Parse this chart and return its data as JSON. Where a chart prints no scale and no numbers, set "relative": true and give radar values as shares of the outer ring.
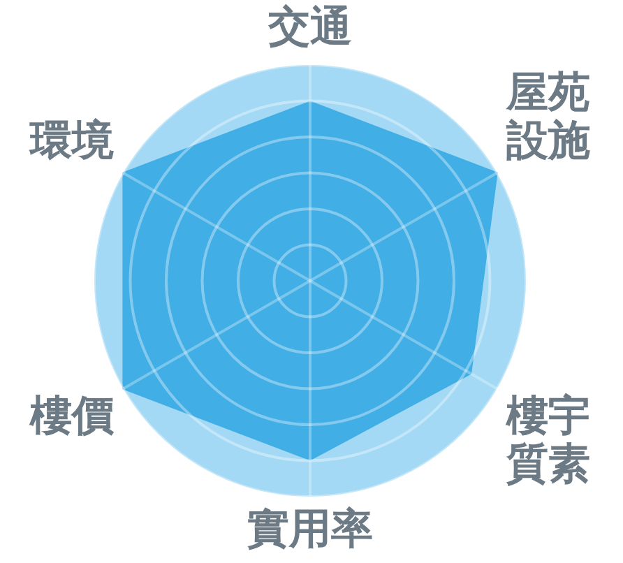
{
  "chart_data": {
    "type": "radar",
    "categories": [
      "交通",
      "屋苑設施",
      "樓宇質素",
      "實用率",
      "樓價",
      "環境"
    ],
    "relative": true,
    "series": [
      {
        "color": "#41aee5",
        "values": [
          0.83,
          1,
          0.86,
          0.83,
          1,
          1
        ]
      }
    ],
    "grid": true,
    "legend": false,
    "marker": "none"
  }
}
